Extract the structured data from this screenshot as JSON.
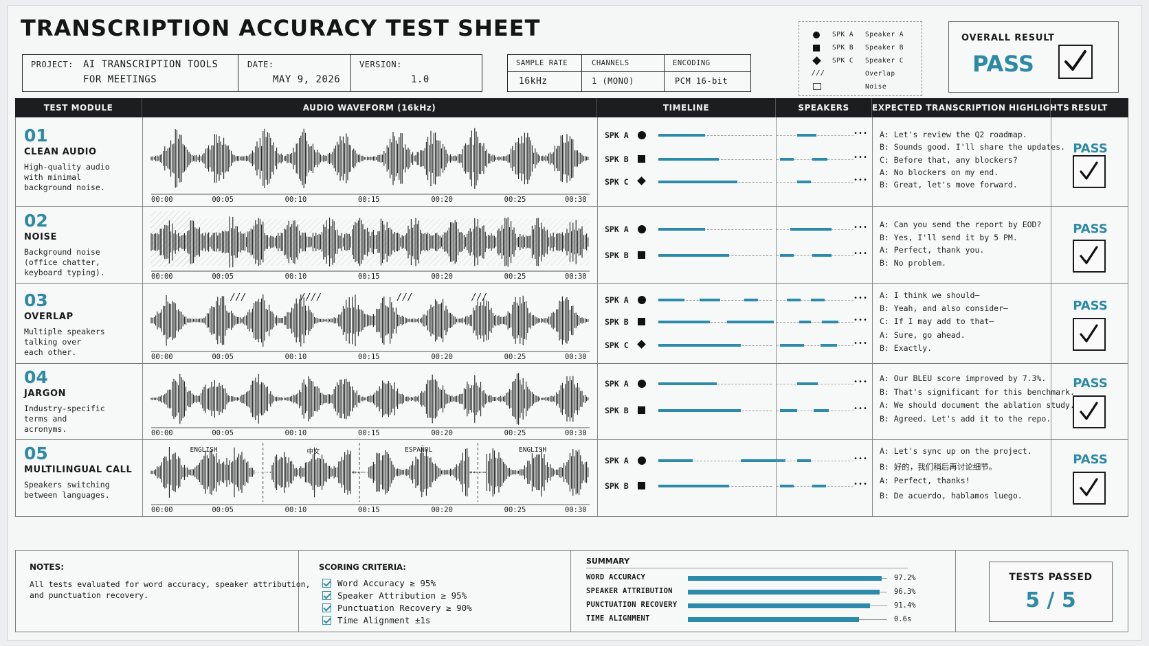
{
  "title": "TRANSCRIPTION ACCURACY TEST SHEET",
  "meta": {
    "project_label": "PROJECT:",
    "project_line1": "AI TRANSCRIPTION TOOLS",
    "project_line2": "FOR MEETINGS",
    "date_label": "DATE:",
    "date_value": "MAY 9, 2026",
    "version_label": "VERSION:",
    "version_value": "1.0"
  },
  "audio": {
    "sample_rate_label": "SAMPLE RATE",
    "sample_rate_value": "16kHz",
    "channels_label": "CHANNELS",
    "channels_value": "1 (MONO)",
    "encoding_label": "ENCODING",
    "encoding_value": "PCM 16-bit"
  },
  "legend": [
    {
      "code": "SPK A",
      "name": "Speaker A",
      "icon": "circle-icon"
    },
    {
      "code": "SPK B",
      "name": "Speaker B",
      "icon": "square-icon"
    },
    {
      "code": "SPK C",
      "name": "Speaker C",
      "icon": "diamond-icon"
    },
    {
      "code": "",
      "name": "Overlap",
      "icon": "overlap-hatch-icon",
      "glyph": "///"
    },
    {
      "code": "",
      "name": "Noise",
      "icon": "noise-box-icon"
    }
  ],
  "overall": {
    "label": "OVERALL RESULT",
    "value": "PASS"
  },
  "table_headers": {
    "module": "TEST MODULE",
    "waveform": "AUDIO WAVEFORM (16kHz)",
    "timeline": "TIMELINE",
    "speakers": "SPEAKERS",
    "highlights": "EXPECTED TRANSCRIPTION HIGHLIGHTS",
    "result": "RESULT"
  },
  "time_ticks": [
    "00:00",
    "00:05",
    "00:10",
    "00:15",
    "00:20",
    "00:25",
    "00:30"
  ],
  "ellipsis": "•••",
  "modules": [
    {
      "num": "01",
      "name": "CLEAN AUDIO",
      "desc": "High-quality audio\nwith minimal\nbackground noise.",
      "speakers": [
        "SPK A",
        "SPK B",
        "SPK C"
      ],
      "highlights": [
        "A: Let's review the Q2 roadmap.",
        "B: Sounds good. I'll share the updates.",
        "C: Before that, any blockers?",
        "A: No blockers on my end.",
        "B: Great, let's move forward."
      ],
      "result": "PASS"
    },
    {
      "num": "02",
      "name": "NOISE",
      "desc": "Background noise\n(office chatter,\nkeyboard typing).",
      "speakers": [
        "SPK A",
        "SPK B"
      ],
      "highlights": [
        "A: Can you send the report by EOD?",
        "B: Yes, I'll send it by 5 PM.",
        "A: Perfect, thank you.",
        "B: No problem."
      ],
      "result": "PASS"
    },
    {
      "num": "03",
      "name": "OVERLAP",
      "desc": "Multiple speakers\ntalking over\neach other.",
      "overlap_marks": [
        "///",
        "////",
        "///",
        "///"
      ],
      "speakers": [
        "SPK A",
        "SPK B",
        "SPK C"
      ],
      "highlights": [
        "A: I think we should—",
        "B: Yeah, and also consider—",
        "C: If I may add to that—",
        "A: Sure, go ahead.",
        "B: Exactly."
      ],
      "result": "PASS"
    },
    {
      "num": "04",
      "name": "JARGON",
      "desc": "Industry-specific\nterms and\nacronyms.",
      "speakers": [
        "SPK A",
        "SPK B"
      ],
      "highlights": [
        "A: Our BLEU score improved by 7.3%.",
        "B: That's significant for this benchmark.",
        "A: We should document the ablation study.",
        "B: Agreed. Let's add it to the repo."
      ],
      "result": "PASS"
    },
    {
      "num": "05",
      "name": "MULTILINGUAL CALL",
      "desc": "Speakers switching\nbetween languages.",
      "languages": [
        "ENGLISH",
        "中文",
        "ESPAÑOL",
        "ENGLISH"
      ],
      "speakers": [
        "SPK A",
        "SPK B"
      ],
      "highlights": [
        "A: Let's sync up on the project.",
        "B: 好的，我们稍后再讨论细节。",
        "A: Perfect, thanks!",
        "B: De acuerdo, hablamos luego."
      ],
      "result": "PASS"
    }
  ],
  "notes": {
    "label": "NOTES:",
    "line1": "All tests evaluated for word accuracy, speaker attribution,",
    "line2": "and punctuation recovery."
  },
  "scoring": {
    "label": "SCORING CRITERIA:",
    "items": [
      "Word Accuracy ≥ 95%",
      "Speaker Attribution ≥ 95%",
      "Punctuation Recovery ≥ 90%",
      "Time Alignment ±1s"
    ]
  },
  "summary": {
    "label": "SUMMARY",
    "items": [
      {
        "label": "WORD ACCURACY",
        "value": "97.2%",
        "fill": 0.972
      },
      {
        "label": "SPEAKER ATTRIBUTION",
        "value": "96.3%",
        "fill": 0.963
      },
      {
        "label": "PUNCTUATION RECOVERY",
        "value": "91.4%",
        "fill": 0.914
      },
      {
        "label": "TIME ALIGNMENT",
        "value": "0.6s",
        "fill": 0.86
      }
    ]
  },
  "tests_passed": {
    "label": "TESTS PASSED",
    "value": "5 / 5"
  },
  "colors": {
    "accent": "#2d8aa6",
    "bar": "#2c8bab",
    "header": "#1b1d1f"
  }
}
